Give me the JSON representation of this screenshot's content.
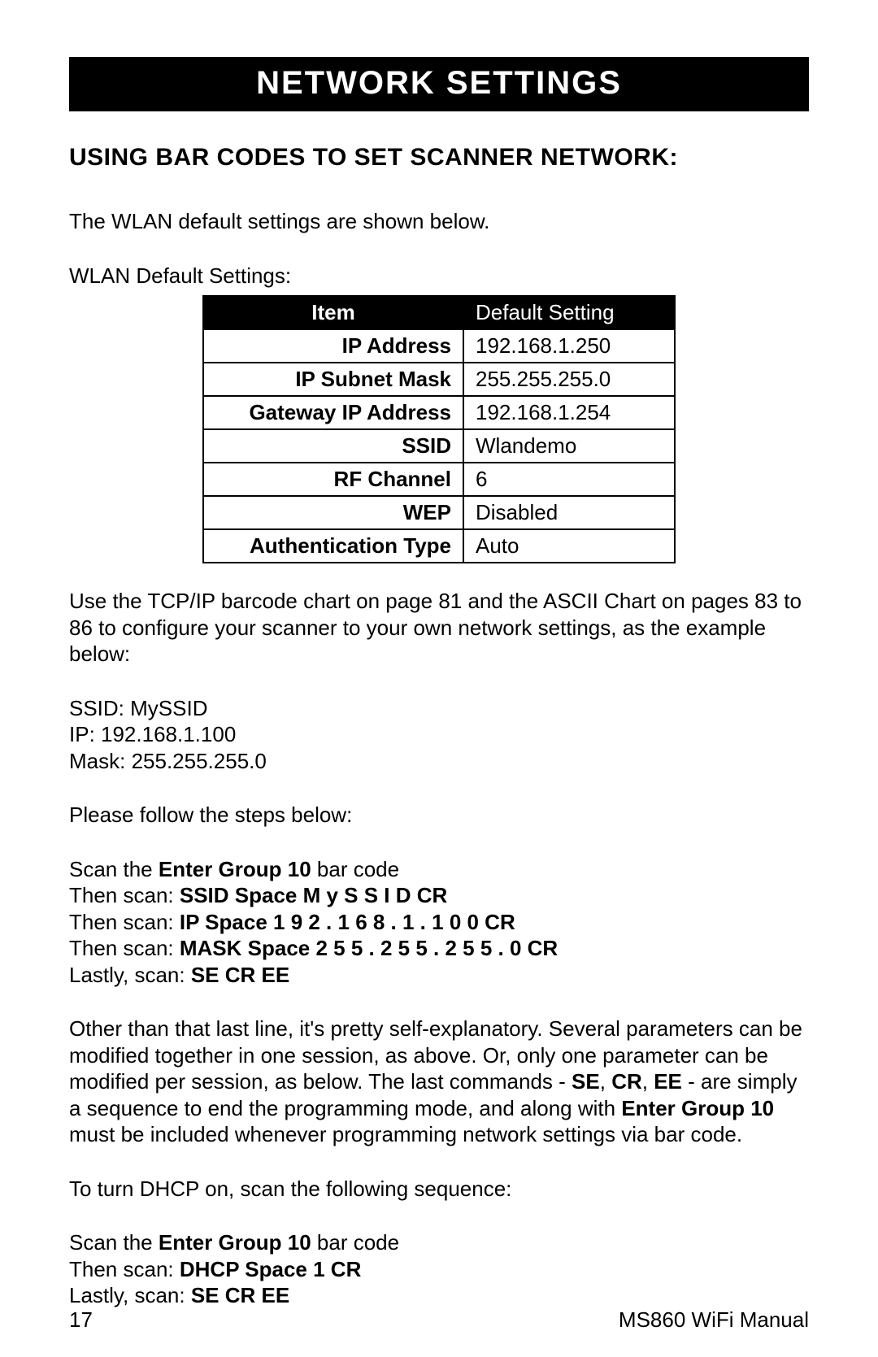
{
  "banner": "NETWORK SETTINGS",
  "subhead": "USING BAR CODES TO SET SCANNER NETWORK:",
  "intro1": "The WLAN default settings are shown below.",
  "intro2": "WLAN Default Settings:",
  "table": {
    "header_item": "Item",
    "header_default": "Default Setting",
    "rows": [
      {
        "k": "IP Address",
        "v": "192.168.1.250"
      },
      {
        "k": "IP Subnet Mask",
        "v": "255.255.255.0"
      },
      {
        "k": "Gateway IP Address",
        "v": "192.168.1.254"
      },
      {
        "k": "SSID",
        "v": "Wlandemo"
      },
      {
        "k": "RF Channel",
        "v": "6"
      },
      {
        "k": "WEP",
        "v": "Disabled"
      },
      {
        "k": "Authentication Type",
        "v": "Auto"
      }
    ]
  },
  "para_use": "Use the TCP/IP barcode chart on page 81 and the ASCII Chart on pages 83 to 86  to configure your scanner to your own network settings, as the example below:",
  "example_ssid": "SSID: MySSID",
  "example_ip": "IP: 192.168.1.100",
  "example_mask": "Mask: 255.255.255.0",
  "please_follow": "Please follow the steps below:",
  "steps": {
    "scan_prefix": "Scan the ",
    "enter_group_10": "Enter Group 10",
    "scan_suffix": " bar code",
    "then_scan_prefix": "Then scan: ",
    "lastly_prefix": "Lastly, scan:  ",
    "line_ssid": "SSID   Space   M   y   S   S   I   D   CR",
    "line_ip": "IP   Space   1   9   2   .   1   6   8   .   1   .   1   0   0   CR",
    "line_mask": "MASK   Space   2   5   5   .   2   5   5   .   2   5   5   .   0   CR",
    "line_se": "SE   CR   EE"
  },
  "para_other_1": "Other than that last line, it's pretty self-explanatory.  Several parameters can be modified together in one session, as above.  Or, only one parameter can be modified per session, as below.  The last commands - ",
  "para_other_se": "SE",
  "para_other_comma": ", ",
  "para_other_cr": "CR",
  "para_other_ee": "EE",
  "para_other_2": " - are simply a sequence to end the programming mode, and along with ",
  "para_other_eg10": "Enter Group 10",
  "para_other_3": " must be included whenever programming network settings via bar code.",
  "para_dhcp": "To turn DHCP on, scan the following sequence:",
  "dhcp_line": "DHCP   Space   1   CR",
  "footer_page": "17",
  "footer_doc": "MS860 WiFi Manual"
}
